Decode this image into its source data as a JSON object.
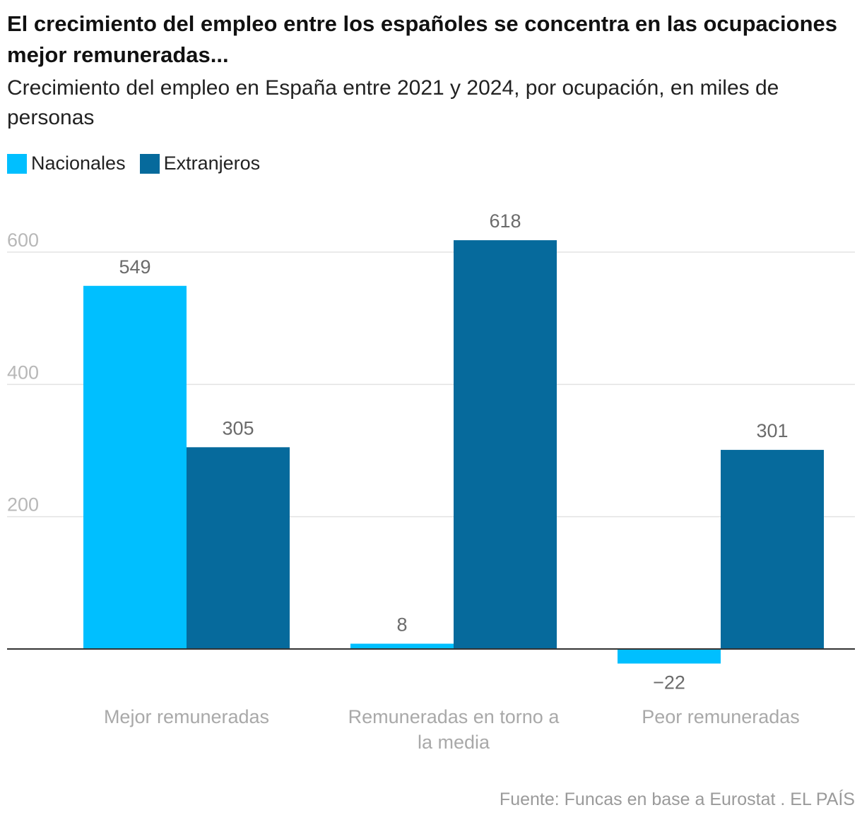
{
  "header": {
    "title": "El crecimiento del empleo entre los españoles se concentra en las ocupaciones mejor remuneradas...",
    "subtitle": "Crecimiento del empleo en España entre 2021 y 2024, por ocupación, en miles de personas"
  },
  "legend": [
    {
      "label": "Nacionales",
      "color": "#00bfff"
    },
    {
      "label": "Extranjeros",
      "color": "#066a9c"
    }
  ],
  "chart_data": {
    "type": "bar",
    "title": "El crecimiento del empleo entre los españoles se concentra en las ocupaciones mejor remuneradas...",
    "subtitle": "Crecimiento del empleo en España entre 2021 y 2024, por ocupación, en miles de personas",
    "categories": [
      [
        "Mejor remuneradas"
      ],
      [
        "Remuneradas en torno a",
        "la media"
      ],
      [
        "Peor remuneradas"
      ]
    ],
    "series": [
      {
        "name": "Nacionales",
        "color": "#00bfff",
        "values": [
          549,
          8,
          -22
        ],
        "labels": [
          "549",
          "8",
          "−22"
        ]
      },
      {
        "name": "Extranjeros",
        "color": "#066a9c",
        "values": [
          305,
          618,
          301
        ],
        "labels": [
          "305",
          "618",
          "301"
        ]
      }
    ],
    "yticks": [
      200,
      400,
      600
    ],
    "ylim": [
      -50,
      680
    ],
    "grid": true,
    "xlabel": "",
    "ylabel": ""
  },
  "source": "Fuente: Funcas en base a Eurostat . EL PAÍS"
}
